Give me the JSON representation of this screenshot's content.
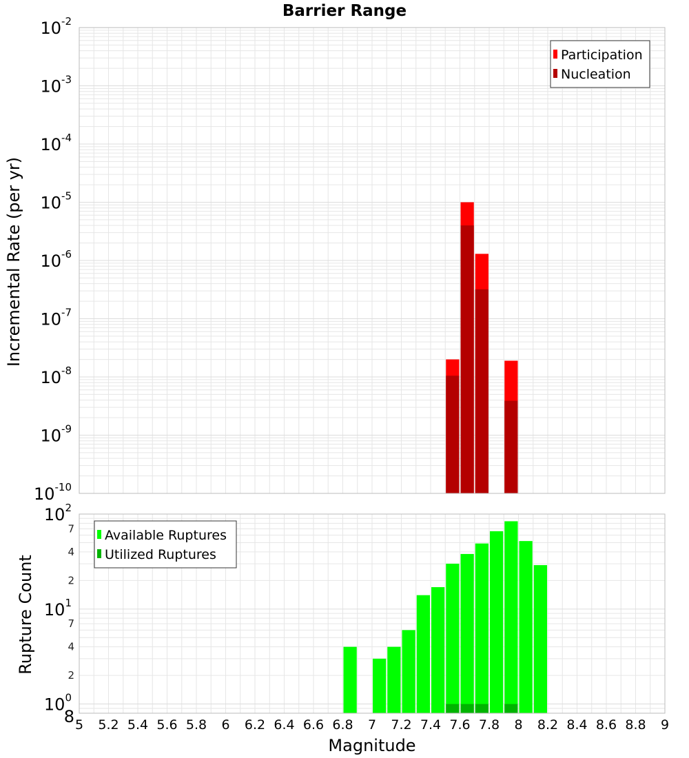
{
  "title": "Barrier Range",
  "xlabel": "Magnitude",
  "colors": {
    "participation": "#ff0000",
    "nucleation": "#b40000",
    "available": "#00ff00",
    "utilized": "#00b400",
    "grid": "#e6e6e6",
    "frame": "#bbbbbb"
  },
  "chart_data": [
    {
      "type": "bar",
      "ylabel": "Incremental Rate (per yr)",
      "yscale": "log",
      "xlim": [
        5,
        9
      ],
      "ylim": [
        1e-10,
        0.01
      ],
      "x_ticks": [
        "5",
        "5.2",
        "5.4",
        "5.6",
        "5.8",
        "6",
        "6.2",
        "6.4",
        "6.6",
        "6.8",
        "7",
        "7.2",
        "7.4",
        "7.6",
        "7.8",
        "8",
        "8.2",
        "8.4",
        "8.6",
        "8.8",
        "9"
      ],
      "y_ticks": [
        {
          "base": "10",
          "exp": "-10",
          "value": 1e-10
        },
        {
          "base": "10",
          "exp": "-9",
          "value": 1e-09
        },
        {
          "base": "10",
          "exp": "-8",
          "value": 1e-08
        },
        {
          "base": "10",
          "exp": "-7",
          "value": 1e-07
        },
        {
          "base": "10",
          "exp": "-6",
          "value": 1e-06
        },
        {
          "base": "10",
          "exp": "-5",
          "value": 1e-05
        },
        {
          "base": "10",
          "exp": "-4",
          "value": 0.0001
        },
        {
          "base": "10",
          "exp": "-3",
          "value": 0.001
        },
        {
          "base": "10",
          "exp": "-2",
          "value": 0.01
        }
      ],
      "legend": {
        "position": "top-right",
        "entries": [
          "Participation",
          "Nucleation"
        ]
      },
      "series": [
        {
          "name": "Participation",
          "x": [
            7.55,
            7.65,
            7.75,
            7.95
          ],
          "values": [
            2e-08,
            1e-05,
            1.3e-06,
            1.9e-08
          ]
        },
        {
          "name": "Nucleation",
          "x": [
            7.55,
            7.65,
            7.75,
            7.95
          ],
          "values": [
            1.05e-08,
            4e-06,
            3.2e-07,
            3.9e-09
          ]
        }
      ]
    },
    {
      "type": "bar",
      "ylabel": "Rupture Count",
      "yscale": "log",
      "xlim": [
        5,
        9
      ],
      "ylim": [
        0.8,
        100
      ],
      "y_ticks": [
        {
          "base": "10",
          "exp": "0",
          "value": 1
        },
        {
          "base": "10",
          "exp": "1",
          "value": 10
        },
        {
          "base": "10",
          "exp": "2",
          "value": 100
        }
      ],
      "y_minor_ticks": [
        {
          "label": "8",
          "value": 0.8
        },
        {
          "label": "2",
          "value": 2
        },
        {
          "label": "4",
          "value": 4
        },
        {
          "label": "7",
          "value": 7
        },
        {
          "label": "2",
          "value": 20
        },
        {
          "label": "4",
          "value": 40
        },
        {
          "label": "7",
          "value": 70
        }
      ],
      "legend": {
        "position": "top-left",
        "entries": [
          "Available Ruptures",
          "Utilized Ruptures"
        ]
      },
      "series": [
        {
          "name": "Available Ruptures",
          "x": [
            6.85,
            7.05,
            7.15,
            7.25,
            7.35,
            7.45,
            7.55,
            7.65,
            7.75,
            7.85,
            7.95,
            8.05,
            8.15
          ],
          "values": [
            4,
            3,
            4,
            6,
            14,
            17,
            30,
            38,
            49,
            66,
            84,
            52,
            29
          ]
        },
        {
          "name": "Utilized Ruptures",
          "x": [
            7.55,
            7.65,
            7.75,
            7.95
          ],
          "values": [
            1,
            1,
            1,
            1
          ]
        }
      ]
    }
  ]
}
